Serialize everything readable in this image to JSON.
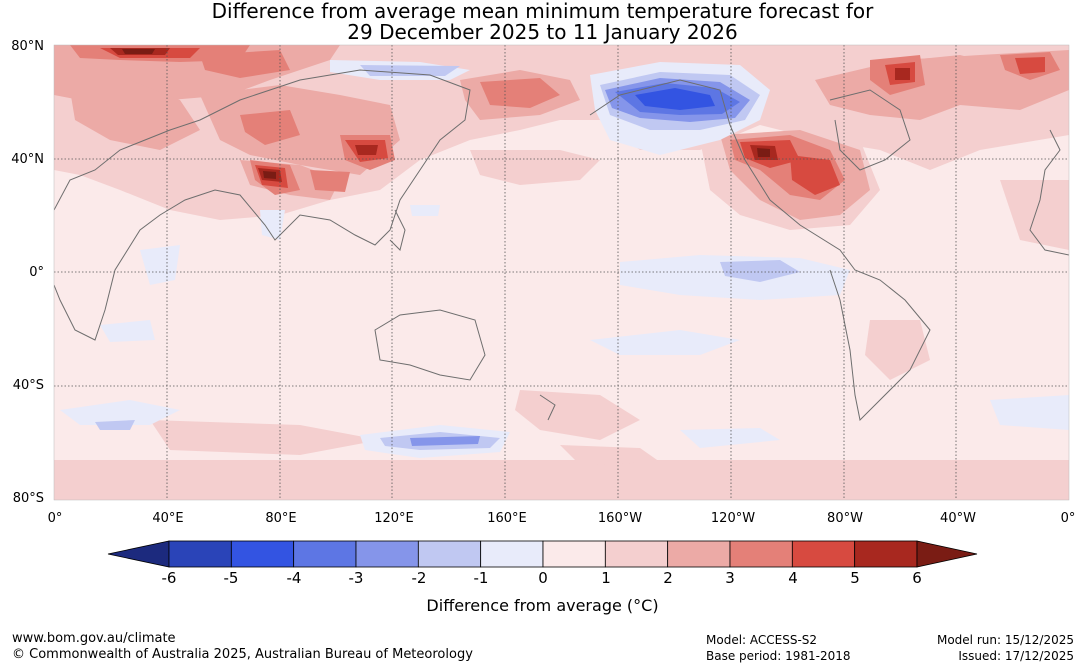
{
  "title": {
    "line1": "Difference from average mean minimum temperature forecast for",
    "line2": "29 December 2025 to 11 January 2026"
  },
  "lat_labels": [
    "80°N",
    "40°N",
    "0°",
    "40°S",
    "80°S"
  ],
  "lon_labels": [
    "0°",
    "40°E",
    "80°E",
    "120°E",
    "160°E",
    "160°W",
    "120°W",
    "80°W",
    "40°W",
    "0°"
  ],
  "colorbar": {
    "title": "Difference from average (°C)",
    "ticks": [
      "-6",
      "-5",
      "-4",
      "-3",
      "-2",
      "-1",
      "0",
      "1",
      "2",
      "3",
      "4",
      "5",
      "6"
    ],
    "colors": [
      "#1c2a7e",
      "#2a44b8",
      "#3354e2",
      "#5d76e4",
      "#8595ea",
      "#c0c8f2",
      "#e8ebfa",
      "#fbeaea",
      "#f4cfcf",
      "#ecaaa6",
      "#e48078",
      "#d74a40",
      "#a8281f",
      "#7a1c14"
    ]
  },
  "footer": {
    "url": "www.bom.gov.au/climate",
    "copyright": "© Commonwealth of Australia 2025, Australian Bureau of Meteorology",
    "model": "Model: ACCESS-S2",
    "base_period": "Base period: 1981-2018",
    "model_run": "Model run: 15/12/2025",
    "issued": "Issued: 17/12/2025"
  }
}
